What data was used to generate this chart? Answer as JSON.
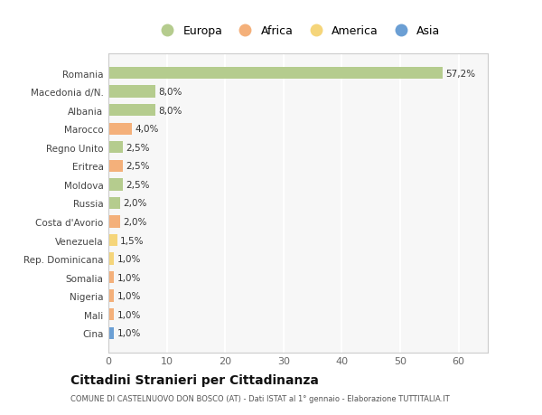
{
  "countries": [
    "Romania",
    "Macedonia d/N.",
    "Albania",
    "Marocco",
    "Regno Unito",
    "Eritrea",
    "Moldova",
    "Russia",
    "Costa d'Avorio",
    "Venezuela",
    "Rep. Dominicana",
    "Somalia",
    "Nigeria",
    "Mali",
    "Cina"
  ],
  "values": [
    57.2,
    8.0,
    8.0,
    4.0,
    2.5,
    2.5,
    2.5,
    2.0,
    2.0,
    1.5,
    1.0,
    1.0,
    1.0,
    1.0,
    1.0
  ],
  "labels": [
    "57,2%",
    "8,0%",
    "8,0%",
    "4,0%",
    "2,5%",
    "2,5%",
    "2,5%",
    "2,0%",
    "2,0%",
    "1,5%",
    "1,0%",
    "1,0%",
    "1,0%",
    "1,0%",
    "1,0%"
  ],
  "continents": [
    "Europa",
    "Europa",
    "Europa",
    "Africa",
    "Europa",
    "Africa",
    "Europa",
    "Europa",
    "Africa",
    "America",
    "America",
    "Africa",
    "Africa",
    "Africa",
    "Asia"
  ],
  "colors": {
    "Europa": "#b5cc8e",
    "Africa": "#f4b07a",
    "America": "#f5d57a",
    "Asia": "#6b9fd4"
  },
  "xlim": [
    0,
    65
  ],
  "xticks": [
    0,
    10,
    20,
    30,
    40,
    50,
    60
  ],
  "title": "Cittadini Stranieri per Cittadinanza",
  "subtitle": "COMUNE DI CASTELNUOVO DON BOSCO (AT) - Dati ISTAT al 1° gennaio - Elaborazione TUTTITALIA.IT",
  "bg_color": "#ffffff",
  "plot_bg_color": "#f7f7f7",
  "grid_color": "#ffffff",
  "bar_height": 0.65
}
